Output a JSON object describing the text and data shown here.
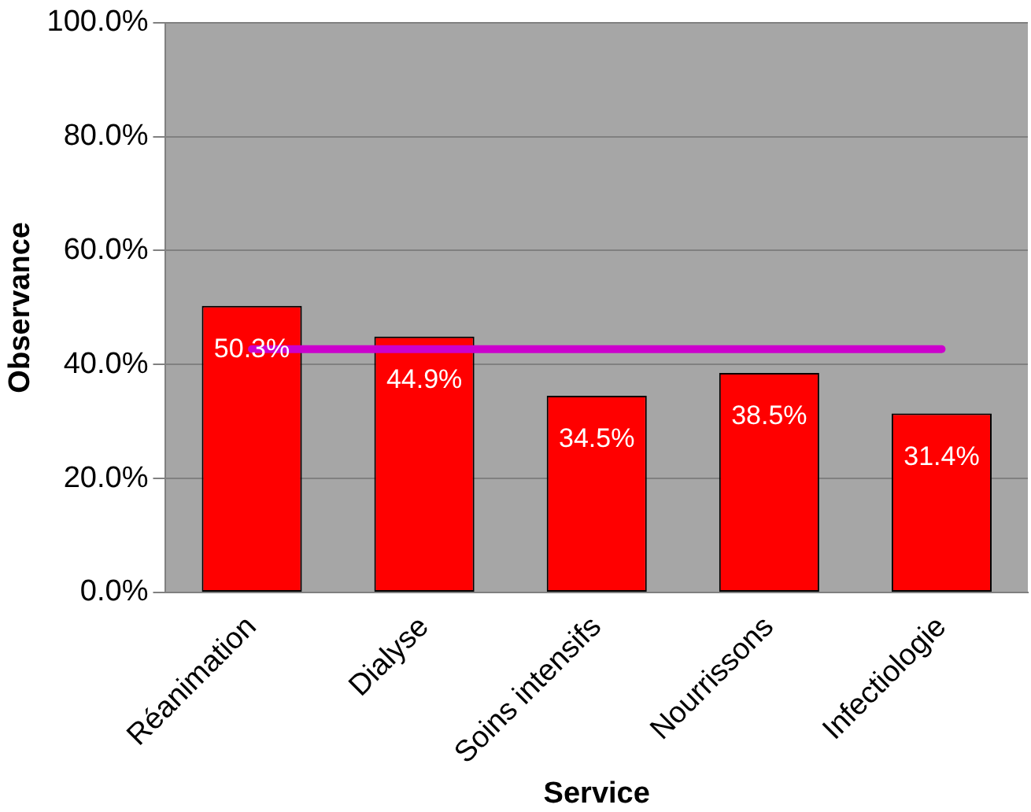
{
  "chart_data": {
    "type": "bar",
    "xlabel": "Service",
    "ylabel": "Observance",
    "categories": [
      "Réanimation",
      "Dialyse",
      "Soins intensifs",
      "Nourrissons",
      "Infectiologie"
    ],
    "values": [
      50.3,
      44.9,
      34.5,
      38.5,
      31.4
    ],
    "color": "#ff0000",
    "value_labels": [
      "50.3%",
      "44.9%",
      "34.5%",
      "38.5%",
      "31.4%"
    ],
    "ylim": [
      0,
      100
    ],
    "yticks": [
      {
        "value": 0,
        "label": "0.0%"
      },
      {
        "value": 20,
        "label": "20.0%"
      },
      {
        "value": 40,
        "label": "40.0%"
      },
      {
        "value": 60,
        "label": "60.0%"
      },
      {
        "value": 80,
        "label": "80.0%"
      },
      {
        "value": 100,
        "label": "100.0%"
      }
    ],
    "grid": "y",
    "legend": false,
    "ref_lines": [
      {
        "axis": "y",
        "value": 42.7,
        "color": "#cc00cc"
      }
    ]
  }
}
